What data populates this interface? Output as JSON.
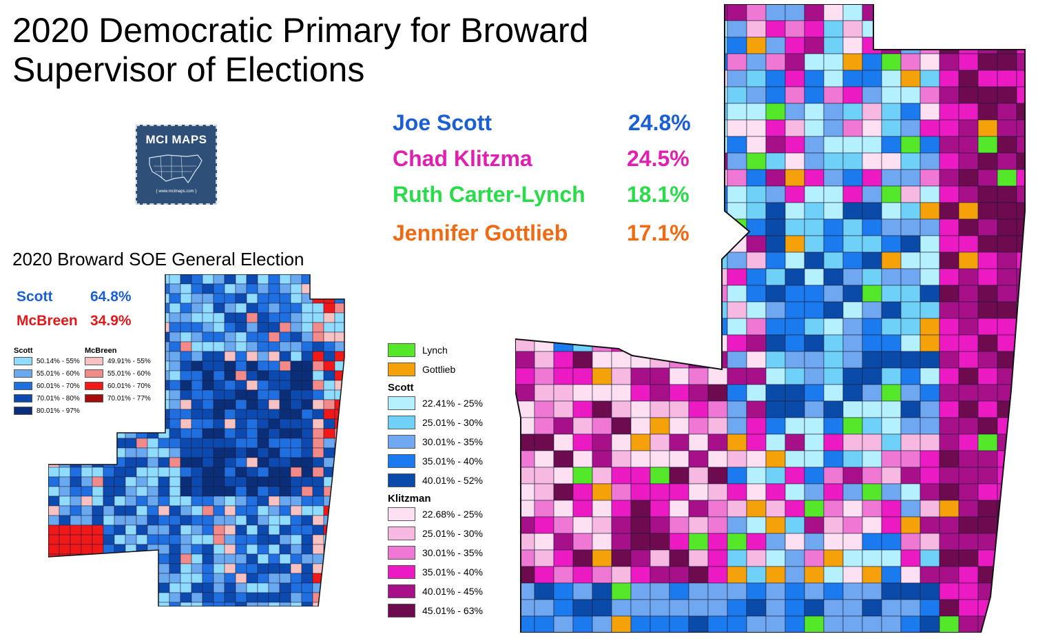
{
  "title": {
    "line1": "2020 Democratic Primary for Broward",
    "line2": "Supervisor of Elections"
  },
  "logo": {
    "text": "MCI MAPS",
    "url": "{ www.mcimaps.com }",
    "icon": "us-map-icon"
  },
  "primary_results": [
    {
      "name": "Joe Scott",
      "pct": "24.8%",
      "color": "#1a5fd6"
    },
    {
      "name": "Chad Klitzma",
      "pct": "24.5%",
      "color": "#e020b0"
    },
    {
      "name": "Ruth Carter-Lynch",
      "pct": "18.1%",
      "color": "#2adb4a"
    },
    {
      "name": "Jennifer Gottlieb",
      "pct": "17.1%",
      "color": "#f06a14"
    }
  ],
  "general": {
    "title": "2020 Broward SOE General Election",
    "results": [
      {
        "name": "Scott",
        "pct": "64.8%",
        "color": "#1a5fd6"
      },
      {
        "name": "McBreen",
        "pct": "34.9%",
        "color": "#e01a1a"
      }
    ],
    "legend": {
      "scott": {
        "label": "Scott",
        "items": [
          {
            "range": "50.14% - 55%",
            "color": "#8fdcff"
          },
          {
            "range": "55.01% - 60%",
            "color": "#6aa8ef"
          },
          {
            "range": "60.01% - 70%",
            "color": "#1f6fe0"
          },
          {
            "range": "70.01% - 80%",
            "color": "#0d4ab0"
          },
          {
            "range": "80.01% - 97%",
            "color": "#0a2e78"
          }
        ]
      },
      "mcbreen": {
        "label": "McBreen",
        "items": [
          {
            "range": "49.91% - 55%",
            "color": "#f8c2c2"
          },
          {
            "range": "55.01% - 60%",
            "color": "#f38a8a"
          },
          {
            "range": "60.01% - 70%",
            "color": "#f01818"
          },
          {
            "range": "70.01% - 77%",
            "color": "#a50d0d"
          }
        ]
      }
    }
  },
  "primary_legend": {
    "singles": [
      {
        "label": "Lynch",
        "color": "#55e82a"
      },
      {
        "label": "Gottlieb",
        "color": "#f5a20a"
      }
    ],
    "scott": {
      "label": "Scott",
      "items": [
        {
          "range": "22.41% - 25%",
          "color": "#b5f0ff"
        },
        {
          "range": "25.01% - 30%",
          "color": "#6fd0f8"
        },
        {
          "range": "30.01% - 35%",
          "color": "#6fa8f0"
        },
        {
          "range": "35.01% - 40%",
          "color": "#1a7aee"
        },
        {
          "range": "40.01% - 52%",
          "color": "#0a4aa8"
        }
      ]
    },
    "klitzman": {
      "label": "Klitzman",
      "items": [
        {
          "range": "22.68% - 25%",
          "color": "#fde0f2"
        },
        {
          "range": "25.01% - 30%",
          "color": "#f7b8e2"
        },
        {
          "range": "30.01% - 35%",
          "color": "#ef78d4"
        },
        {
          "range": "35.01% - 40%",
          "color": "#ec1ac2"
        },
        {
          "range": "40.01% - 45%",
          "color": "#a8108a"
        },
        {
          "range": "45.01% - 63%",
          "color": "#6e0a4e"
        }
      ]
    }
  }
}
